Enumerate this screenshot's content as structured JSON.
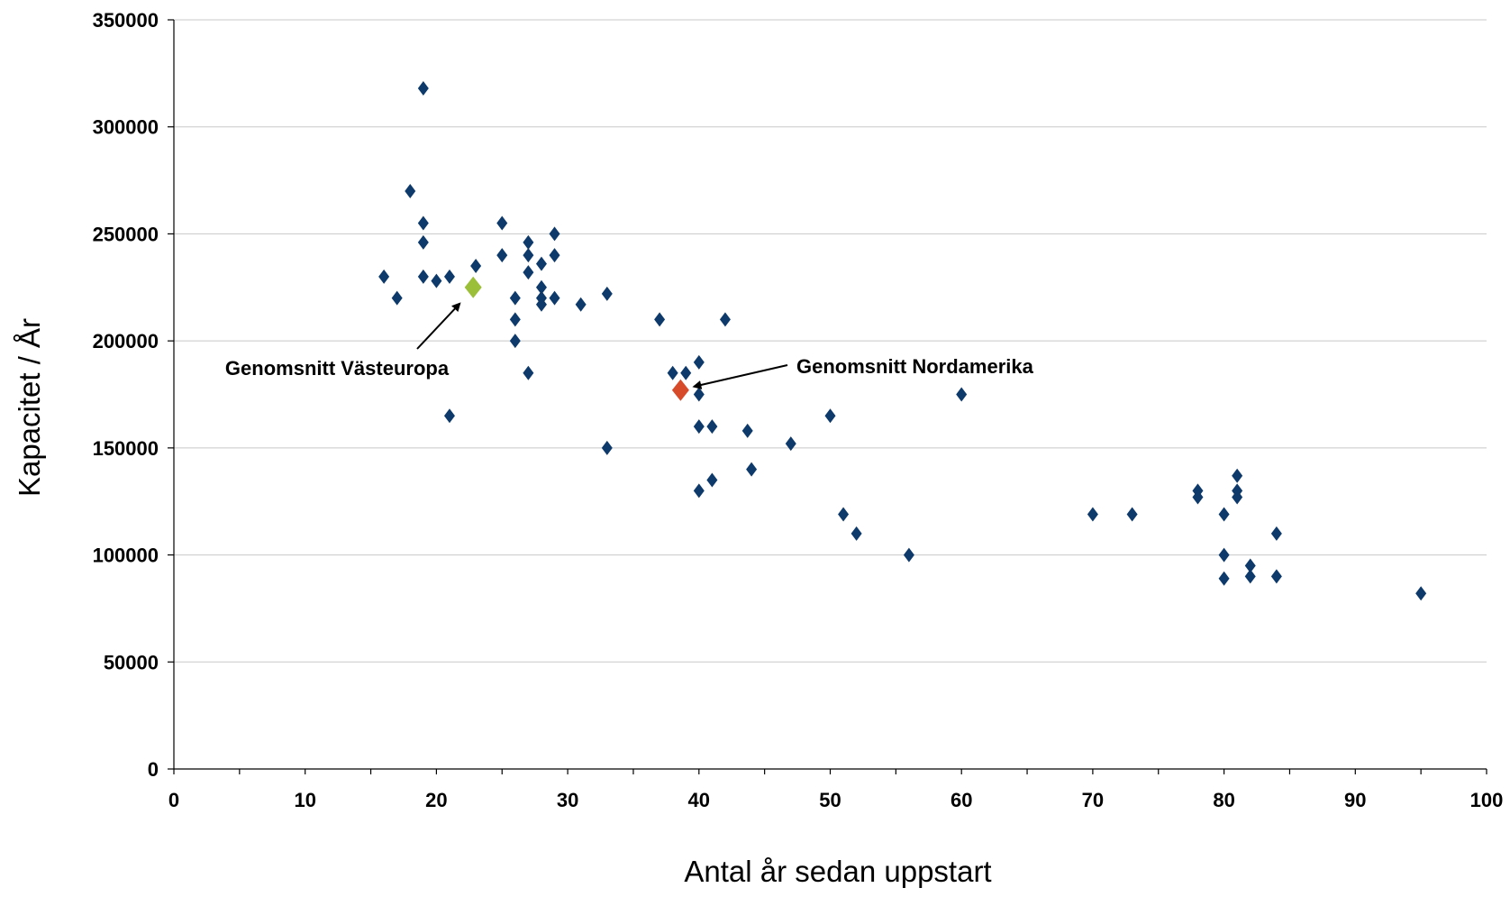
{
  "chart_data": {
    "type": "scatter",
    "xlabel": "Antal år sedan uppstart",
    "ylabel": "Kapacitet / År",
    "xlim": [
      0,
      100
    ],
    "ylim": [
      0,
      350000
    ],
    "x_ticks": [
      0,
      10,
      20,
      30,
      40,
      50,
      60,
      70,
      80,
      90,
      100
    ],
    "y_ticks": [
      0,
      50000,
      100000,
      150000,
      200000,
      250000,
      300000,
      350000
    ],
    "grid": "horizontal",
    "legend": "none",
    "colors": {
      "points": "#0d3a6b",
      "westeurope": "#9cbf3a",
      "northamerica": "#d84b2a"
    },
    "points": [
      {
        "x": 19,
        "y": 318000
      },
      {
        "x": 18,
        "y": 270000
      },
      {
        "x": 19,
        "y": 255000
      },
      {
        "x": 19,
        "y": 246000
      },
      {
        "x": 16,
        "y": 230000
      },
      {
        "x": 17,
        "y": 220000
      },
      {
        "x": 19,
        "y": 230000
      },
      {
        "x": 20,
        "y": 228000
      },
      {
        "x": 21,
        "y": 230000
      },
      {
        "x": 21,
        "y": 165000
      },
      {
        "x": 23,
        "y": 235000
      },
      {
        "x": 25,
        "y": 255000
      },
      {
        "x": 25,
        "y": 240000
      },
      {
        "x": 26,
        "y": 220000
      },
      {
        "x": 26,
        "y": 210000
      },
      {
        "x": 26,
        "y": 200000
      },
      {
        "x": 27,
        "y": 246000
      },
      {
        "x": 27,
        "y": 240000
      },
      {
        "x": 27,
        "y": 232000
      },
      {
        "x": 27,
        "y": 185000
      },
      {
        "x": 28,
        "y": 236000
      },
      {
        "x": 28,
        "y": 225000
      },
      {
        "x": 28,
        "y": 220000
      },
      {
        "x": 28,
        "y": 217000
      },
      {
        "x": 29,
        "y": 250000
      },
      {
        "x": 29,
        "y": 240000
      },
      {
        "x": 29,
        "y": 220000
      },
      {
        "x": 31,
        "y": 217000
      },
      {
        "x": 33,
        "y": 222000
      },
      {
        "x": 33,
        "y": 150000
      },
      {
        "x": 37,
        "y": 210000
      },
      {
        "x": 38,
        "y": 185000
      },
      {
        "x": 39,
        "y": 185000
      },
      {
        "x": 40,
        "y": 190000
      },
      {
        "x": 40,
        "y": 175000
      },
      {
        "x": 40,
        "y": 160000
      },
      {
        "x": 40,
        "y": 130000
      },
      {
        "x": 41,
        "y": 160000
      },
      {
        "x": 41,
        "y": 135000
      },
      {
        "x": 42,
        "y": 210000
      },
      {
        "x": 43.7,
        "y": 158000
      },
      {
        "x": 44,
        "y": 140000
      },
      {
        "x": 47,
        "y": 152000
      },
      {
        "x": 50,
        "y": 165000
      },
      {
        "x": 51,
        "y": 119000
      },
      {
        "x": 52,
        "y": 110000
      },
      {
        "x": 56,
        "y": 100000
      },
      {
        "x": 60,
        "y": 175000
      },
      {
        "x": 70,
        "y": 119000
      },
      {
        "x": 73,
        "y": 119000
      },
      {
        "x": 78,
        "y": 130000
      },
      {
        "x": 78,
        "y": 127000
      },
      {
        "x": 80,
        "y": 119000
      },
      {
        "x": 80,
        "y": 100000
      },
      {
        "x": 80,
        "y": 89000
      },
      {
        "x": 81,
        "y": 137000
      },
      {
        "x": 81,
        "y": 130000
      },
      {
        "x": 81,
        "y": 127000
      },
      {
        "x": 82,
        "y": 95000
      },
      {
        "x": 82,
        "y": 90000
      },
      {
        "x": 84,
        "y": 110000
      },
      {
        "x": 84,
        "y": 90000
      },
      {
        "x": 95,
        "y": 82000
      }
    ],
    "highlights": [
      {
        "label": "Genomsnitt Västeuropa",
        "x": 22.8,
        "y": 225000,
        "color": "#9cbf3a"
      },
      {
        "label": "Genomsnitt Nordamerika",
        "x": 38.6,
        "y": 177000,
        "color": "#d84b2a"
      }
    ]
  }
}
